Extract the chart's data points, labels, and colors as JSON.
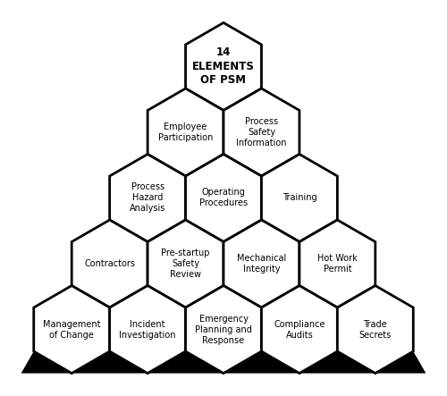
{
  "rows": [
    {
      "labels": [
        "14\nELEMENTS\nOF PSM"
      ],
      "bold": [
        true
      ]
    },
    {
      "labels": [
        "Employee\nParticipation",
        "Process\nSafety\nInformation"
      ],
      "bold": [
        false,
        false
      ]
    },
    {
      "labels": [
        "Process\nHazard\nAnalysis",
        "Operating\nProcedures",
        "Training"
      ],
      "bold": [
        false,
        false,
        false
      ]
    },
    {
      "labels": [
        "Contractors",
        "Pre-startup\nSafety\nReview",
        "Mechanical\nIntegrity",
        "Hot Work\nPermit"
      ],
      "bold": [
        false,
        false,
        false,
        false
      ]
    },
    {
      "labels": [
        "Management\nof Change",
        "Incident\nInvestigation",
        "Emergency\nPlanning and\nResponse",
        "Compliance\nAudits",
        "Trade\nSecrets"
      ],
      "bold": [
        false,
        false,
        false,
        false,
        false
      ]
    }
  ],
  "hex_facecolor": "#ffffff",
  "hex_edgecolor": "#000000",
  "hex_linewidth": 2.0,
  "triangle_color": "#000000",
  "text_color": "#000000",
  "fig_bg": "#ffffff",
  "figsize": [
    5.0,
    4.43
  ],
  "dpi": 100,
  "fontsize": 7.0,
  "r": 1.0,
  "xlim": [
    -5.1,
    5.1
  ],
  "ylim": [
    -7.3,
    1.3
  ]
}
